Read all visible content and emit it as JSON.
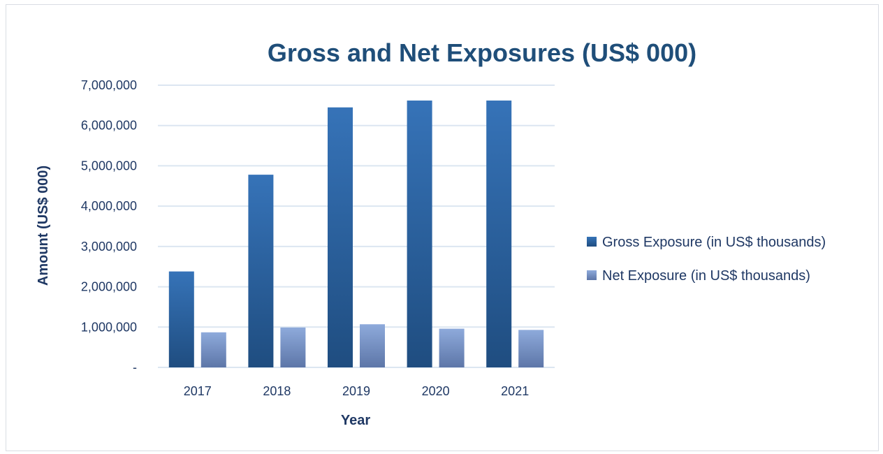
{
  "chart_data": {
    "type": "bar",
    "title": "Gross and Net Exposures (US$ 000)",
    "xlabel": "Year",
    "ylabel": "Amount (US$ 000)",
    "categories": [
      "2017",
      "2018",
      "2019",
      "2020",
      "2021"
    ],
    "ylim": [
      0,
      7000000
    ],
    "yticks": [
      0,
      1000000,
      2000000,
      3000000,
      4000000,
      5000000,
      6000000,
      7000000
    ],
    "ytick_labels": [
      "-",
      "1,000,000",
      "2,000,000",
      "3,000,000",
      "4,000,000",
      "5,000,000",
      "6,000,000",
      "7,000,000"
    ],
    "grid": true,
    "legend_position": "right",
    "series": [
      {
        "name": "Gross Exposure (in US$ thousands)",
        "values": [
          2380000,
          4780000,
          6450000,
          6620000,
          6620000
        ],
        "color_top": "#3673b8",
        "color_bottom": "#1f4d80"
      },
      {
        "name": "Net Exposure (in US$ thousands)",
        "values": [
          870000,
          990000,
          1070000,
          960000,
          930000
        ],
        "color_top": "#8eaadb",
        "color_bottom": "#5d76a8"
      }
    ]
  }
}
